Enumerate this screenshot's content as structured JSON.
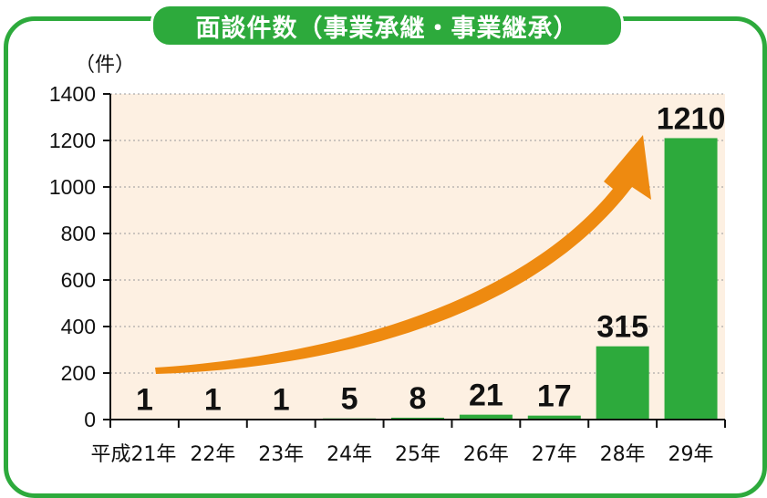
{
  "title": "面談件数（事業承継・事業継承）",
  "colors": {
    "frame": "#2daa3c",
    "bar": "#2daa3c",
    "plot_bg": "#fdf0e2",
    "arrow": "#ee8a10",
    "grid": "#999999"
  },
  "chart_data": {
    "type": "bar",
    "title": "面談件数（事業承継・事業継承）",
    "xlabel": "",
    "ylabel": "（件）",
    "ylim": [
      0,
      1400
    ],
    "yticks": [
      0,
      200,
      400,
      600,
      800,
      1000,
      1200,
      1400
    ],
    "grid": true,
    "categories": [
      "平成21年",
      "22年",
      "23年",
      "24年",
      "25年",
      "26年",
      "27年",
      "28年",
      "29年"
    ],
    "values": [
      1,
      1,
      1,
      5,
      8,
      21,
      17,
      315,
      1210
    ],
    "data_labels": [
      "1",
      "1",
      "1",
      "5",
      "8",
      "21",
      "17",
      "315",
      "1210"
    ],
    "annotations": [
      "trend-arrow (upward growth)"
    ]
  }
}
